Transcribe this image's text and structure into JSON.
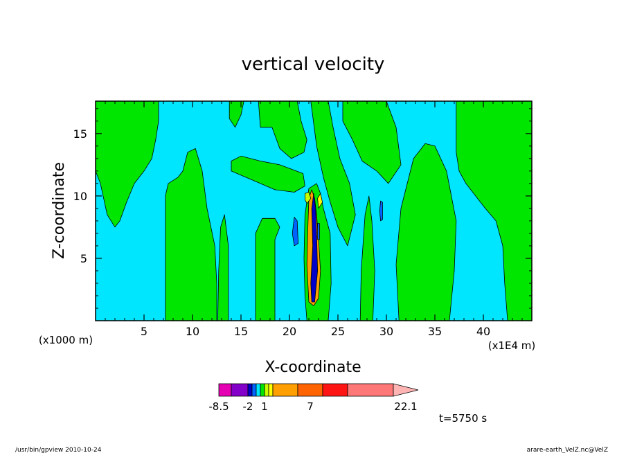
{
  "chart_data": {
    "type": "contour",
    "title": "vertical velocity",
    "xlabel": "X-coordinate",
    "ylabel": "Z-coordinate",
    "x_units": "(x1E4 m)",
    "y_units": "(x1000 m)",
    "xlim": [
      0,
      45
    ],
    "ylim": [
      0,
      17.6
    ],
    "x_ticks": [
      5,
      10,
      15,
      20,
      25,
      30,
      35,
      40
    ],
    "y_ticks": [
      5,
      10,
      15
    ],
    "time_label": "t=5750 s",
    "colorbar": {
      "colors": [
        "#e600b4",
        "#8200c8",
        "#0000c8",
        "#0064ff",
        "#00e6ff",
        "#00e600",
        "#c8ff00",
        "#ffff00",
        "#ffa000",
        "#ff6400",
        "#ff1414",
        "#ff7878",
        "#ffb4b4"
      ],
      "widths": [
        1.5,
        2.0,
        0.5,
        0.5,
        0.5,
        0.5,
        0.5,
        0.5,
        3.0,
        3.0,
        3.0,
        5.5,
        3.0
      ],
      "labels": [
        {
          "value": -8.5,
          "text": "-8.5"
        },
        {
          "value": -2,
          "text": "-2"
        },
        {
          "value": 1,
          "text": "1"
        },
        {
          "value": 7,
          "text": "7"
        },
        {
          "value": 22.1,
          "text": "22.1"
        }
      ]
    },
    "regions": [
      {
        "level": "positive",
        "color": "#00e600",
        "points": [
          [
            0,
            17.6
          ],
          [
            6.5,
            17.6
          ],
          [
            6.5,
            16
          ],
          [
            6.2,
            14.5
          ],
          [
            5.8,
            13
          ],
          [
            5,
            12
          ],
          [
            4,
            11
          ],
          [
            3.2,
            9.5
          ],
          [
            2.5,
            8
          ],
          [
            2,
            7.5
          ],
          [
            1.2,
            8.5
          ],
          [
            0.5,
            11
          ],
          [
            0,
            12
          ]
        ]
      },
      {
        "level": "positive",
        "color": "#00e600",
        "points": [
          [
            7.2,
            0
          ],
          [
            12.5,
            0
          ],
          [
            12.5,
            3
          ],
          [
            12.3,
            6
          ],
          [
            11.5,
            9
          ],
          [
            11,
            12
          ],
          [
            10.3,
            13.8
          ],
          [
            9.5,
            13.5
          ],
          [
            9,
            12
          ],
          [
            8.5,
            11.5
          ],
          [
            7.5,
            11
          ],
          [
            7.2,
            10
          ]
        ]
      },
      {
        "level": "positive",
        "color": "#00e600",
        "points": [
          [
            12.6,
            0
          ],
          [
            13.7,
            0
          ],
          [
            13.7,
            6
          ],
          [
            13.3,
            8.5
          ],
          [
            12.9,
            7.5
          ],
          [
            12.7,
            4
          ]
        ]
      },
      {
        "level": "positive",
        "color": "#00e600",
        "points": [
          [
            16.5,
            0
          ],
          [
            18.5,
            0
          ],
          [
            18.5,
            6.5
          ],
          [
            19,
            7.5
          ],
          [
            18.5,
            8.2
          ],
          [
            17.2,
            8.2
          ],
          [
            16.5,
            7
          ]
        ]
      },
      {
        "level": "positive",
        "color": "#00e600",
        "points": [
          [
            14,
            12
          ],
          [
            15.5,
            11.5
          ],
          [
            17,
            11
          ],
          [
            18.5,
            10.5
          ],
          [
            20.5,
            10.3
          ],
          [
            21.6,
            10.8
          ],
          [
            21.4,
            11.8
          ],
          [
            19,
            12.5
          ],
          [
            17,
            12.8
          ],
          [
            15,
            13.2
          ],
          [
            14,
            12.8
          ]
        ]
      },
      {
        "level": "positive",
        "color": "#00e600",
        "points": [
          [
            13.8,
            17.6
          ],
          [
            15.3,
            17.6
          ],
          [
            15,
            16.5
          ],
          [
            14.4,
            15.5
          ],
          [
            13.8,
            16.2
          ]
        ]
      },
      {
        "level": "positive",
        "color": "#00e600",
        "points": [
          [
            16.8,
            17.6
          ],
          [
            20.8,
            17.6
          ],
          [
            21.2,
            16
          ],
          [
            21.8,
            14.5
          ],
          [
            21.5,
            13.5
          ],
          [
            20.2,
            13
          ],
          [
            19,
            13.8
          ],
          [
            18.2,
            15.5
          ],
          [
            17,
            15.5
          ]
        ]
      },
      {
        "level": "positive",
        "color": "#00e600",
        "points": [
          [
            22.2,
            17.6
          ],
          [
            24,
            17.6
          ],
          [
            24.5,
            15.5
          ],
          [
            25.2,
            13
          ],
          [
            26.2,
            11
          ],
          [
            26.8,
            8.5
          ],
          [
            26,
            6
          ],
          [
            25,
            7.5
          ],
          [
            24.2,
            9.5
          ],
          [
            23.5,
            11.5
          ],
          [
            22.8,
            14
          ]
        ]
      },
      {
        "level": "positive",
        "color": "#00e600",
        "points": [
          [
            25.5,
            17.6
          ],
          [
            30,
            17.6
          ],
          [
            31,
            15.5
          ],
          [
            31.5,
            12.5
          ],
          [
            30.2,
            11
          ],
          [
            29,
            12
          ],
          [
            27.5,
            12.8
          ],
          [
            26.5,
            14.5
          ],
          [
            25.5,
            16
          ]
        ]
      },
      {
        "level": "positive",
        "color": "#00e600",
        "points": [
          [
            27.3,
            0
          ],
          [
            28.6,
            0
          ],
          [
            28.8,
            4
          ],
          [
            28.5,
            8
          ],
          [
            28.2,
            10
          ],
          [
            27.8,
            8.5
          ],
          [
            27.4,
            4
          ]
        ]
      },
      {
        "level": "positive",
        "color": "#00e600",
        "points": [
          [
            31.3,
            0
          ],
          [
            36.5,
            0
          ],
          [
            37,
            4
          ],
          [
            37.2,
            8
          ],
          [
            36.2,
            12
          ],
          [
            35,
            14
          ],
          [
            34,
            14.2
          ],
          [
            32.8,
            13
          ],
          [
            31.5,
            9
          ],
          [
            31,
            4.5
          ]
        ]
      },
      {
        "level": "positive",
        "color": "#00e600",
        "points": [
          [
            37.2,
            17.6
          ],
          [
            45,
            17.6
          ],
          [
            45,
            0
          ],
          [
            42.5,
            0
          ],
          [
            42.2,
            3
          ],
          [
            42,
            6
          ],
          [
            41.3,
            8
          ],
          [
            40.2,
            9
          ],
          [
            39.2,
            10
          ],
          [
            38.2,
            11
          ],
          [
            37.5,
            12
          ],
          [
            37.2,
            13.5
          ]
        ]
      },
      {
        "level": "positive",
        "color": "#00e600",
        "points": [
          [
            21.8,
            0
          ],
          [
            24,
            0
          ],
          [
            24.3,
            3
          ],
          [
            24.2,
            7
          ],
          [
            23.5,
            9
          ],
          [
            23.2,
            10.2
          ],
          [
            22.8,
            11
          ],
          [
            22,
            10.6
          ],
          [
            21.6,
            8.5
          ],
          [
            21.5,
            5
          ],
          [
            21.6,
            2
          ]
        ]
      },
      {
        "level": "strong-up",
        "color": "#ffa000",
        "points": [
          [
            22,
            1.5
          ],
          [
            22.5,
            1.2
          ],
          [
            23,
            1.8
          ],
          [
            23.2,
            4
          ],
          [
            23,
            6.5
          ],
          [
            22.8,
            8.5
          ],
          [
            22.6,
            9.8
          ],
          [
            22.3,
            10.5
          ],
          [
            22,
            9.8
          ],
          [
            21.9,
            7.5
          ],
          [
            21.8,
            4.5
          ]
        ]
      },
      {
        "level": "weak-up",
        "color": "#c8ff00",
        "points": [
          [
            21.8,
            9.4
          ],
          [
            22.2,
            9.8
          ],
          [
            22,
            10.3
          ],
          [
            21.6,
            10.2
          ],
          [
            21.6,
            9.7
          ]
        ]
      },
      {
        "level": "weak-up",
        "color": "#ffff00",
        "points": [
          [
            23,
            9
          ],
          [
            23.4,
            9.5
          ],
          [
            23.2,
            10.2
          ],
          [
            22.9,
            9.8
          ]
        ]
      },
      {
        "level": "downdraft",
        "color": "#0000c8",
        "points": [
          [
            22.3,
            1.5
          ],
          [
            22.6,
            1.5
          ],
          [
            22.9,
            4
          ],
          [
            22.8,
            7
          ],
          [
            22.7,
            9
          ],
          [
            22.5,
            10.2
          ],
          [
            22.3,
            9
          ],
          [
            22.4,
            6
          ],
          [
            22.2,
            3
          ]
        ]
      },
      {
        "level": "downdraft",
        "color": "#0064ff",
        "points": [
          [
            20.5,
            6
          ],
          [
            20.9,
            6.2
          ],
          [
            20.8,
            8
          ],
          [
            20.5,
            8.3
          ],
          [
            20.3,
            7
          ]
        ]
      },
      {
        "level": "downdraft",
        "color": "#0064ff",
        "points": [
          [
            29.4,
            8
          ],
          [
            29.6,
            8.1
          ],
          [
            29.6,
            9.5
          ],
          [
            29.4,
            9.6
          ],
          [
            29.3,
            8.8
          ]
        ]
      },
      {
        "level": "downdraft",
        "color": "#0064ff",
        "points": [
          [
            22.9,
            6.5
          ],
          [
            23.1,
            6.5
          ],
          [
            23.1,
            7.8
          ],
          [
            22.9,
            7.8
          ]
        ]
      }
    ]
  },
  "footer": {
    "left": "/usr/bin/gpview  2010-10-24",
    "right": "arare-earth_VelZ.nc@VelZ"
  }
}
